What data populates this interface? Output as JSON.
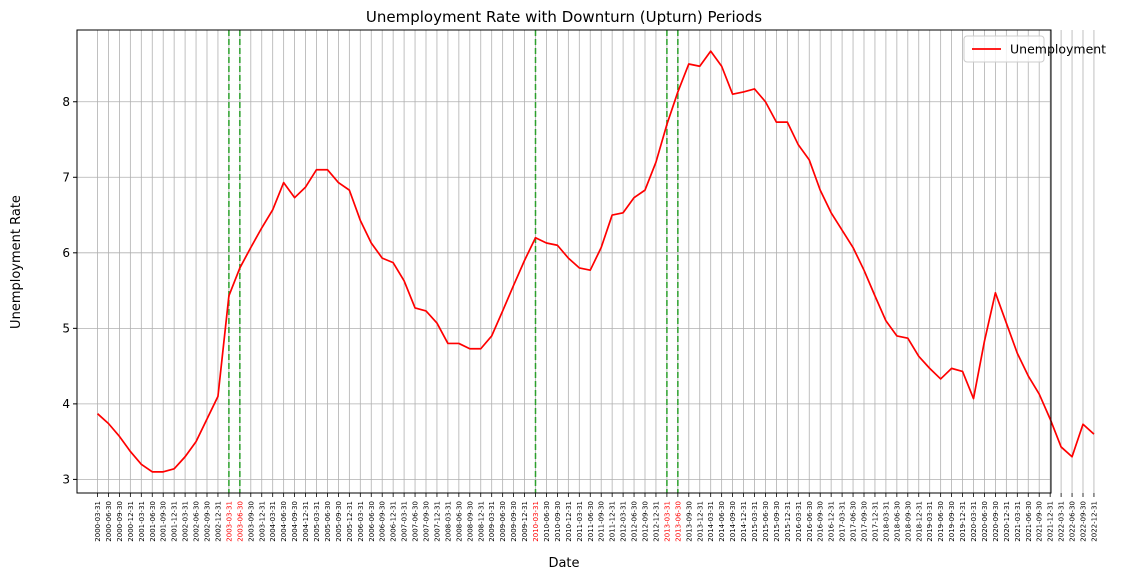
{
  "chart_data": {
    "type": "line",
    "title": "Unemployment Rate with Downturn (Upturn) Periods",
    "xlabel": "Date",
    "ylabel": "Unemployment Rate",
    "ylim": [
      2.82,
      8.95
    ],
    "yticks": [
      3,
      4,
      5,
      6,
      7,
      8
    ],
    "grid": true,
    "legend": "top-right",
    "x": [
      "2000-03-31",
      "2000-06-30",
      "2000-09-30",
      "2000-12-31",
      "2001-03-31",
      "2001-06-30",
      "2001-09-30",
      "2001-12-31",
      "2002-03-31",
      "2002-06-30",
      "2002-09-30",
      "2002-12-31",
      "2003-03-31",
      "2003-06-30",
      "2003-09-30",
      "2003-12-31",
      "2004-03-31",
      "2004-06-30",
      "2004-09-30",
      "2004-12-31",
      "2005-03-31",
      "2005-06-30",
      "2005-09-30",
      "2005-12-31",
      "2006-03-31",
      "2006-06-30",
      "2006-09-30",
      "2006-12-31",
      "2007-03-31",
      "2007-06-30",
      "2007-09-30",
      "2007-12-31",
      "2008-03-31",
      "2008-06-30",
      "2008-09-30",
      "2008-12-31",
      "2009-03-31",
      "2009-06-30",
      "2009-09-30",
      "2009-12-31",
      "2010-03-31",
      "2010-06-30",
      "2010-09-30",
      "2010-12-31",
      "2011-03-31",
      "2011-06-30",
      "2011-09-30",
      "2011-12-31",
      "2012-03-31",
      "2012-06-30",
      "2012-09-30",
      "2012-12-31",
      "2013-03-31",
      "2013-06-30",
      "2013-09-30",
      "2013-12-31",
      "2014-03-31",
      "2014-06-30",
      "2014-09-30",
      "2014-12-31",
      "2015-03-31",
      "2015-06-30",
      "2015-09-30",
      "2015-12-31",
      "2016-03-31",
      "2016-06-30",
      "2016-09-30",
      "2016-12-31",
      "2017-03-31",
      "2017-06-30",
      "2017-09-30",
      "2017-12-31",
      "2018-03-31",
      "2018-06-30",
      "2018-09-30",
      "2018-12-31",
      "2019-03-31",
      "2019-06-30",
      "2019-09-30",
      "2019-12-31",
      "2020-03-31",
      "2020-06-30",
      "2020-09-30",
      "2020-12-31",
      "2021-03-31",
      "2021-06-30",
      "2021-09-30",
      "2021-12-31",
      "2022-03-31",
      "2022-06-30",
      "2022-09-30",
      "2022-12-31"
    ],
    "series": [
      {
        "name": "Unemployment",
        "color": "#ff0000",
        "values": [
          3.87,
          3.74,
          3.57,
          3.37,
          3.2,
          3.1,
          3.1,
          3.14,
          3.3,
          3.5,
          3.8,
          4.1,
          5.43,
          5.8,
          6.07,
          6.33,
          6.57,
          6.93,
          6.73,
          6.87,
          7.1,
          7.1,
          6.93,
          6.83,
          6.43,
          6.13,
          5.93,
          5.87,
          5.63,
          5.27,
          5.23,
          5.07,
          4.8,
          4.8,
          4.73,
          4.73,
          4.9,
          5.23,
          5.57,
          5.9,
          6.2,
          6.13,
          6.1,
          5.93,
          5.8,
          5.77,
          6.07,
          6.5,
          6.53,
          6.73,
          6.83,
          7.2,
          7.7,
          8.13,
          8.5,
          8.47,
          8.67,
          8.47,
          8.1,
          8.13,
          8.17,
          8.0,
          7.73,
          7.73,
          7.43,
          7.23,
          6.83,
          6.53,
          6.3,
          6.07,
          5.77,
          5.43,
          5.1,
          4.9,
          4.87,
          4.63,
          4.47,
          4.33,
          4.47,
          4.43,
          4.07,
          4.83,
          5.47,
          5.07,
          4.67,
          4.37,
          4.13,
          3.8,
          3.43,
          3.3,
          3.73,
          3.6
        ]
      }
    ],
    "highlight_dates": [
      "2003-03-31",
      "2003-06-30",
      "2010-03-31",
      "2013-03-31",
      "2013-06-30"
    ],
    "highlight_color": "#ff0000",
    "vline_color": "#2ca02c",
    "grid_color": "#b0b0b0"
  }
}
